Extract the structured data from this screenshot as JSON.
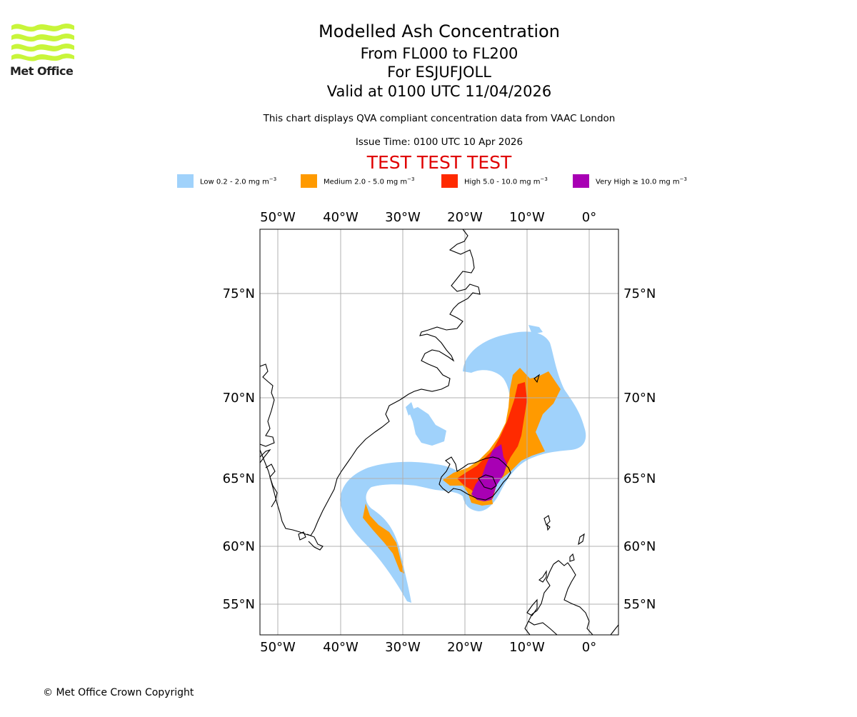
{
  "header": {
    "logo_text": "Met Office",
    "title": "Modelled Ash Concentration",
    "levels": "From FL000 to FL200",
    "volcano": "For ESJUFJOLL",
    "valid": "Valid at 0100 UTC 11/04/2026",
    "description": "This chart displays QVA compliant concentration data from VAAC London",
    "issue": "Issue Time: 0100 UTC 10 Apr 2026",
    "test_banner": "TEST TEST TEST"
  },
  "legend": [
    {
      "label": "Low 0.2 - 2.0 mg m",
      "unit_sup": "−3",
      "color": "#a0d2fb"
    },
    {
      "label": "Medium 2.0 - 5.0 mg m",
      "unit_sup": "−3",
      "color": "#ff9a00"
    },
    {
      "label": "High 5.0 - 10.0 mg m",
      "unit_sup": "−3",
      "color": "#ff2a00"
    },
    {
      "label": "Very High ≥ 10.0 mg m",
      "unit_sup": "−3",
      "color": "#a800b4"
    }
  ],
  "map": {
    "lon_labels": [
      "50°W",
      "40°W",
      "30°W",
      "20°W",
      "10°W",
      "0°"
    ],
    "lat_labels": [
      "75°N",
      "70°N",
      "65°N",
      "60°N",
      "55°N"
    ],
    "grid_color": "#b0b0b0",
    "coast_color": "#000000"
  },
  "footer": {
    "copyright": "© Met Office Crown Copyright"
  }
}
